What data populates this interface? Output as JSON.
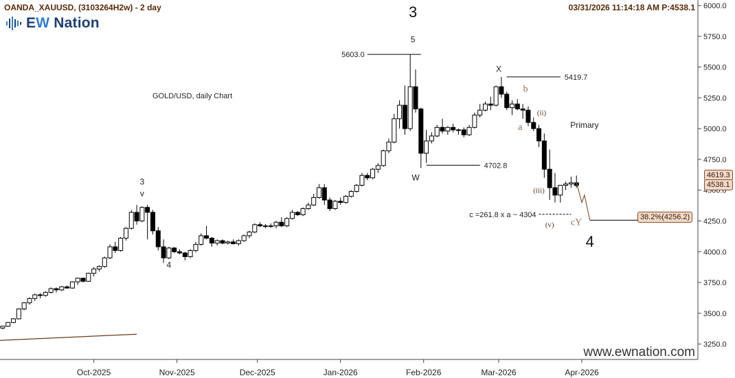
{
  "header": {
    "symbol": "OANDA_XAUUSD, (3103264H2w) - 2 day",
    "timestamp": "03/31/2026 11:14:18 AM  P:4538.1"
  },
  "logo": {
    "text_prefix": "E",
    "text_hl": "W",
    "text_rest": " Nation"
  },
  "watermark": "www.ewnation.com",
  "colors": {
    "bull": "#ffffff",
    "bear": "#000000",
    "wave": "#8a5a3c",
    "text": "#333333"
  },
  "price_tags": {
    "current_high": "4619.3",
    "current": "4538.1",
    "fib_target": "38.2%(4256.2)"
  },
  "chart_data": {
    "type": "candlestick",
    "title": "GOLD/USD, daily Chart",
    "ylim": [
      3125,
      6000
    ],
    "y_ticks": [
      "6000.0",
      "5750.0",
      "5500.0",
      "5250.0",
      "5000.0",
      "4750.0",
      "4500.0",
      "4250.0",
      "4000.0",
      "3750.0",
      "3500.0",
      "3250.0"
    ],
    "x_labels": [
      {
        "label": "Oct-2025",
        "date": "2025-10-01"
      },
      {
        "label": "Nov-2025",
        "date": "2025-11-01"
      },
      {
        "label": "Dec-2025",
        "date": "2025-12-01"
      },
      {
        "label": "Jan-2026",
        "date": "2026-01-01"
      },
      {
        "label": "Feb-2026",
        "date": "2026-02-01"
      },
      {
        "label": "Mar-2026",
        "date": "2026-03-01"
      },
      {
        "label": "Apr-2026",
        "date": "2026-04-01"
      }
    ],
    "candles": [
      [
        "2025-08-28",
        3380,
        3400,
        3370,
        3395
      ],
      [
        "2025-08-30",
        3395,
        3430,
        3390,
        3425
      ],
      [
        "2025-09-01",
        3425,
        3460,
        3420,
        3455
      ],
      [
        "2025-09-03",
        3455,
        3540,
        3450,
        3535
      ],
      [
        "2025-09-05",
        3535,
        3590,
        3525,
        3585
      ],
      [
        "2025-09-07",
        3585,
        3630,
        3570,
        3620
      ],
      [
        "2025-09-09",
        3620,
        3660,
        3600,
        3650
      ],
      [
        "2025-09-11",
        3650,
        3665,
        3620,
        3645
      ],
      [
        "2025-09-13",
        3645,
        3680,
        3635,
        3670
      ],
      [
        "2025-09-15",
        3670,
        3710,
        3660,
        3700
      ],
      [
        "2025-09-17",
        3700,
        3710,
        3670,
        3690
      ],
      [
        "2025-09-19",
        3690,
        3720,
        3680,
        3715
      ],
      [
        "2025-09-21",
        3715,
        3725,
        3700,
        3705
      ],
      [
        "2025-09-23",
        3705,
        3760,
        3700,
        3755
      ],
      [
        "2025-09-25",
        3755,
        3790,
        3730,
        3785
      ],
      [
        "2025-09-27",
        3785,
        3790,
        3750,
        3760
      ],
      [
        "2025-09-29",
        3760,
        3830,
        3755,
        3825
      ],
      [
        "2025-10-01",
        3825,
        3875,
        3800,
        3860
      ],
      [
        "2025-10-03",
        3860,
        3890,
        3840,
        3880
      ],
      [
        "2025-10-05",
        3880,
        3960,
        3870,
        3950
      ],
      [
        "2025-10-07",
        3950,
        4060,
        3940,
        4040
      ],
      [
        "2025-10-09",
        4040,
        4080,
        3990,
        4010
      ],
      [
        "2025-10-11",
        4010,
        4120,
        4000,
        4110
      ],
      [
        "2025-10-13",
        4110,
        4200,
        4090,
        4190
      ],
      [
        "2025-10-15",
        4190,
        4340,
        4180,
        4320
      ],
      [
        "2025-10-17",
        4320,
        4380,
        4220,
        4250
      ],
      [
        "2025-10-19",
        4250,
        4370,
        4240,
        4360
      ],
      [
        "2025-10-21",
        4360,
        4380,
        4100,
        4320
      ],
      [
        "2025-10-23",
        4320,
        4340,
        4140,
        4170
      ],
      [
        "2025-10-25",
        4170,
        4200,
        4010,
        4040
      ],
      [
        "2025-10-27",
        4040,
        4100,
        3910,
        3950
      ],
      [
        "2025-10-29",
        3950,
        4040,
        3940,
        4030
      ],
      [
        "2025-10-31",
        4030,
        4040,
        3990,
        4000
      ],
      [
        "2025-11-02",
        4000,
        4020,
        3980,
        3990
      ],
      [
        "2025-11-04",
        3990,
        4000,
        3930,
        3960
      ],
      [
        "2025-11-06",
        3960,
        4020,
        3950,
        4010
      ],
      [
        "2025-11-08",
        4010,
        4080,
        3995,
        4060
      ],
      [
        "2025-11-10",
        4060,
        4150,
        4050,
        4130
      ],
      [
        "2025-11-12",
        4130,
        4210,
        4100,
        4110
      ],
      [
        "2025-11-14",
        4110,
        4120,
        4040,
        4070
      ],
      [
        "2025-11-16",
        4070,
        4100,
        4050,
        4090
      ],
      [
        "2025-11-18",
        4090,
        4100,
        4060,
        4070
      ],
      [
        "2025-11-20",
        4070,
        4090,
        4060,
        4080
      ],
      [
        "2025-11-22",
        4080,
        4100,
        4060,
        4065
      ],
      [
        "2025-11-24",
        4065,
        4100,
        4050,
        4090
      ],
      [
        "2025-11-26",
        4090,
        4140,
        4080,
        4130
      ],
      [
        "2025-11-28",
        4130,
        4170,
        4110,
        4160
      ],
      [
        "2025-11-30",
        4160,
        4230,
        4150,
        4220
      ],
      [
        "2025-12-02",
        4220,
        4240,
        4200,
        4210
      ],
      [
        "2025-12-04",
        4210,
        4225,
        4190,
        4205
      ],
      [
        "2025-12-06",
        4205,
        4230,
        4195,
        4210
      ],
      [
        "2025-12-08",
        4210,
        4250,
        4190,
        4240
      ],
      [
        "2025-12-10",
        4240,
        4280,
        4200,
        4210
      ],
      [
        "2025-12-12",
        4210,
        4280,
        4200,
        4270
      ],
      [
        "2025-12-14",
        4270,
        4340,
        4260,
        4320
      ],
      [
        "2025-12-16",
        4320,
        4330,
        4290,
        4300
      ],
      [
        "2025-12-18",
        4300,
        4360,
        4290,
        4350
      ],
      [
        "2025-12-20",
        4350,
        4400,
        4340,
        4380
      ],
      [
        "2025-12-22",
        4380,
        4470,
        4370,
        4440
      ],
      [
        "2025-12-24",
        4440,
        4550,
        4430,
        4520
      ],
      [
        "2025-12-26",
        4520,
        4550,
        4380,
        4420
      ],
      [
        "2025-12-28",
        4420,
        4440,
        4330,
        4350
      ],
      [
        "2025-12-30",
        4350,
        4420,
        4340,
        4410
      ],
      [
        "2026-01-01",
        4410,
        4440,
        4380,
        4400
      ],
      [
        "2026-01-03",
        4400,
        4460,
        4390,
        4450
      ],
      [
        "2026-01-05",
        4450,
        4500,
        4440,
        4490
      ],
      [
        "2026-01-07",
        4490,
        4550,
        4480,
        4540
      ],
      [
        "2026-01-09",
        4540,
        4640,
        4530,
        4620
      ],
      [
        "2026-01-11",
        4620,
        4640,
        4580,
        4600
      ],
      [
        "2026-01-13",
        4600,
        4680,
        4590,
        4670
      ],
      [
        "2026-01-15",
        4670,
        4720,
        4640,
        4700
      ],
      [
        "2026-01-17",
        4700,
        4830,
        4690,
        4820
      ],
      [
        "2026-01-19",
        4820,
        4920,
        4800,
        4890
      ],
      [
        "2026-01-21",
        4890,
        5120,
        4880,
        5080
      ],
      [
        "2026-01-23",
        5080,
        5230,
        5000,
        5190
      ],
      [
        "2026-01-25",
        5190,
        5350,
        4950,
        5000
      ],
      [
        "2026-01-27",
        5000,
        5603,
        4980,
        5340
      ],
      [
        "2026-01-29",
        5340,
        5480,
        5130,
        5160
      ],
      [
        "2026-01-31",
        5160,
        5170,
        4680,
        4800
      ],
      [
        "2026-02-02",
        4800,
        4990,
        4720,
        4900
      ],
      [
        "2026-02-04",
        4900,
        4970,
        4880,
        4940
      ],
      [
        "2026-02-06",
        4940,
        5030,
        4930,
        5010
      ],
      [
        "2026-02-08",
        5010,
        5080,
        4960,
        4980
      ],
      [
        "2026-02-10",
        4980,
        5020,
        4950,
        5010
      ],
      [
        "2026-02-12",
        5010,
        5040,
        4970,
        4990
      ],
      [
        "2026-02-14",
        4990,
        5000,
        4950,
        4990
      ],
      [
        "2026-02-16",
        4990,
        5010,
        4930,
        4950
      ],
      [
        "2026-02-18",
        4950,
        5030,
        4940,
        5010
      ],
      [
        "2026-02-20",
        5010,
        5130,
        5000,
        5110
      ],
      [
        "2026-02-22",
        5110,
        5200,
        5090,
        5150
      ],
      [
        "2026-02-24",
        5150,
        5220,
        5140,
        5200
      ],
      [
        "2026-02-26",
        5200,
        5260,
        5150,
        5190
      ],
      [
        "2026-02-28",
        5190,
        5350,
        5180,
        5340
      ],
      [
        "2026-03-02",
        5340,
        5420,
        5250,
        5280
      ],
      [
        "2026-03-04",
        5280,
        5300,
        5150,
        5170
      ],
      [
        "2026-03-06",
        5170,
        5230,
        5110,
        5200
      ],
      [
        "2026-03-08",
        5200,
        5240,
        5150,
        5160
      ],
      [
        "2026-03-10",
        5160,
        5200,
        5080,
        5150
      ],
      [
        "2026-03-12",
        5150,
        5180,
        5020,
        5050
      ],
      [
        "2026-03-14",
        5050,
        5090,
        4980,
        5000
      ],
      [
        "2026-03-16",
        5000,
        5030,
        4850,
        4900
      ],
      [
        "2026-03-18",
        4900,
        4960,
        4600,
        4670
      ],
      [
        "2026-03-20",
        4670,
        4830,
        4420,
        4520
      ],
      [
        "2026-03-22",
        4520,
        4640,
        4400,
        4460
      ],
      [
        "2026-03-24",
        4460,
        4540,
        4400,
        4540
      ],
      [
        "2026-03-26",
        4540,
        4570,
        4500,
        4550
      ],
      [
        "2026-03-28",
        4550,
        4610,
        4520,
        4560
      ],
      [
        "2026-03-30",
        4560,
        4619,
        4520,
        4538
      ]
    ],
    "projection": [
      [
        "2026-03-30",
        4560
      ],
      [
        "2026-04-01",
        4400
      ],
      [
        "2026-04-02",
        4460
      ],
      [
        "2026-04-04",
        4256
      ]
    ],
    "wave_labels": [
      {
        "text": "3",
        "date": "2025-10-19",
        "price": 4545,
        "size": "small"
      },
      {
        "text": "v",
        "date": "2025-10-19",
        "price": 4450,
        "size": "small"
      },
      {
        "text": "4",
        "date": "2025-10-29",
        "price": 3870,
        "size": "small"
      },
      {
        "text": "3",
        "date": "2026-01-28",
        "price": 5905,
        "size": "large"
      },
      {
        "text": "5",
        "date": "2026-01-28",
        "price": 5700,
        "size": "small"
      },
      {
        "text": "W",
        "date": "2026-01-29",
        "price": 4580,
        "size": "small"
      },
      {
        "text": "X",
        "date": "2026-03-01",
        "price": 5460,
        "size": "small"
      },
      {
        "text": "b",
        "date": "2026-03-11",
        "price": 5300,
        "size": "brown"
      },
      {
        "text": "a",
        "date": "2026-03-09",
        "price": 4990,
        "size": "brown"
      },
      {
        "text": "(ii)",
        "date": "2026-03-17",
        "price": 5110,
        "size": "brown-small"
      },
      {
        "text": "Primary",
        "date": "2026-04-02",
        "price": 5005,
        "size": "small"
      },
      {
        "text": "(iii)",
        "date": "2026-03-16",
        "price": 4480,
        "size": "brown-small"
      },
      {
        "text": "(v)",
        "date": "2026-03-20",
        "price": 4200,
        "size": "brown-small"
      },
      {
        "text": "cY",
        "date": "2026-03-30",
        "price": 4215,
        "size": "brown"
      },
      {
        "text": "4",
        "date": "2026-04-04",
        "price": 4040,
        "size": "large"
      }
    ],
    "annotations": [
      {
        "text": "5603.0",
        "price": 5603,
        "from": "2026-01-11",
        "to": "2026-01-31",
        "label_side": "left"
      },
      {
        "text": "5419.7",
        "price": 5420,
        "from": "2026-03-04",
        "to": "2026-03-24",
        "label_side": "right"
      },
      {
        "text": "4702.8",
        "price": 4703,
        "from": "2026-02-02",
        "to": "2026-02-22",
        "label_side": "right"
      },
      {
        "text": "c =261.8 x a ~ 4304",
        "price": 4304,
        "from": "2026-03-16",
        "to": "2026-03-28",
        "label_side": "left",
        "dashed": true
      }
    ],
    "trendline": [
      [
        "2025-08-27",
        3280
      ],
      [
        "2025-10-17",
        3330
      ]
    ]
  }
}
